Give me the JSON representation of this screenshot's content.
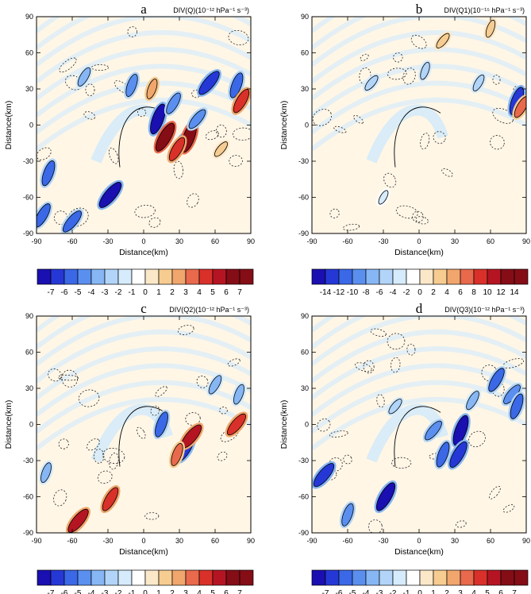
{
  "figure": {
    "axis_xlabel": "Distance(km)",
    "axis_ylabel": "Distance(km)"
  },
  "chart_data": [
    {
      "type": "heatmap",
      "panel_label": "a",
      "title": "DIV(Q)(10⁻¹² hPa⁻¹ s⁻³)",
      "xlabel": "Distance(km)",
      "ylabel": "Distance(km)",
      "xlim": [
        -90,
        90
      ],
      "ylim": [
        -90,
        90
      ],
      "xticks": [
        -90,
        -60,
        -30,
        0,
        30,
        60,
        90
      ],
      "yticks": [
        90,
        60,
        30,
        0,
        -30,
        -60,
        -90
      ],
      "colorbar_levels": [
        "-7",
        "-6",
        "-5",
        "-4",
        "-3",
        "-2",
        "-1",
        "0",
        "1",
        "2",
        "3",
        "4",
        "5",
        "6",
        "7"
      ],
      "features": [
        {
          "x": 12,
          "y": 5,
          "value": -7
        },
        {
          "x": 18,
          "y": -10,
          "value": 7
        },
        {
          "x": 33,
          "y": -15,
          "value": -7
        },
        {
          "x": 38,
          "y": -10,
          "value": 7
        },
        {
          "x": 28,
          "y": -20,
          "value": 5
        },
        {
          "x": 55,
          "y": 35,
          "value": -6
        },
        {
          "x": 78,
          "y": 33,
          "value": -5
        },
        {
          "x": 82,
          "y": 20,
          "value": 5
        },
        {
          "x": -28,
          "y": -58,
          "value": -7
        },
        {
          "x": -80,
          "y": -40,
          "value": -5
        },
        {
          "x": -85,
          "y": -75,
          "value": -5
        },
        {
          "x": -60,
          "y": -80,
          "value": -5
        },
        {
          "x": -10,
          "y": 33,
          "value": -4
        },
        {
          "x": 25,
          "y": 18,
          "value": -4
        },
        {
          "x": 45,
          "y": 5,
          "value": -4
        },
        {
          "x": 7,
          "y": 30,
          "value": 3
        },
        {
          "x": -50,
          "y": 40,
          "value": -3
        },
        {
          "x": 65,
          "y": -20,
          "value": 2
        }
      ]
    },
    {
      "type": "heatmap",
      "panel_label": "b",
      "title": "DIV(Q1)(10⁻¹⁵ hPa⁻¹ s⁻³)",
      "xlabel": "Distance(km)",
      "ylabel": "Distance(km)",
      "xlim": [
        -90,
        90
      ],
      "ylim": [
        -90,
        90
      ],
      "xticks": [
        -90,
        -60,
        -30,
        0,
        30,
        60,
        90
      ],
      "yticks": [
        90,
        60,
        30,
        0,
        -30,
        -60,
        -90
      ],
      "colorbar_levels": [
        "-14",
        "-12",
        "-10",
        "-8",
        "-6",
        "-4",
        "-2",
        "0",
        "2",
        "4",
        "6",
        "8",
        "10",
        "12",
        "14"
      ],
      "features": [
        {
          "x": 82,
          "y": 20,
          "value": -12
        },
        {
          "x": 86,
          "y": 15,
          "value": 8
        },
        {
          "x": -40,
          "y": 35,
          "value": -4
        },
        {
          "x": 5,
          "y": 45,
          "value": -4
        },
        {
          "x": 50,
          "y": 35,
          "value": -4
        },
        {
          "x": 20,
          "y": 70,
          "value": 4
        },
        {
          "x": 60,
          "y": 80,
          "value": 4
        },
        {
          "x": -30,
          "y": -60,
          "value": -2
        }
      ]
    },
    {
      "type": "heatmap",
      "panel_label": "c",
      "title": "DIV(Q2)(10⁻¹² hPa⁻¹ s⁻³)",
      "xlabel": "Distance(km)",
      "ylabel": "Distance(km)",
      "xlim": [
        -90,
        90
      ],
      "ylim": [
        -90,
        90
      ],
      "xticks": [
        -90,
        -60,
        -30,
        0,
        30,
        60,
        90
      ],
      "yticks": [
        90,
        60,
        30,
        0,
        -30,
        -60,
        -90
      ],
      "colorbar_levels": [
        "-7",
        "-6",
        "-5",
        "-4",
        "-3",
        "-2",
        "-1",
        "0",
        "1",
        "2",
        "3",
        "4",
        "5",
        "6",
        "7"
      ],
      "features": [
        {
          "x": 15,
          "y": 0,
          "value": -5
        },
        {
          "x": 35,
          "y": -20,
          "value": -6
        },
        {
          "x": 40,
          "y": -10,
          "value": 6
        },
        {
          "x": 28,
          "y": -25,
          "value": 4
        },
        {
          "x": -28,
          "y": -62,
          "value": 5
        },
        {
          "x": -55,
          "y": -80,
          "value": 6
        },
        {
          "x": -82,
          "y": -40,
          "value": -3
        },
        {
          "x": 60,
          "y": 33,
          "value": -3
        },
        {
          "x": 78,
          "y": 0,
          "value": 5
        },
        {
          "x": 80,
          "y": 25,
          "value": -3
        }
      ]
    },
    {
      "type": "heatmap",
      "panel_label": "d",
      "title": "DIV(Q3)(10⁻¹² hPa⁻¹ s⁻³)",
      "xlabel": "Distance(km)",
      "ylabel": "Distance(km)",
      "xlim": [
        -90,
        90
      ],
      "ylim": [
        -90,
        90
      ],
      "xticks": [
        -90,
        -60,
        -30,
        0,
        30,
        60,
        90
      ],
      "yticks": [
        90,
        60,
        30,
        0,
        -30,
        -60,
        -90
      ],
      "colorbar_levels": [
        "-7",
        "-6",
        "-5",
        "-4",
        "-3",
        "-2",
        "-1",
        "0",
        "1",
        "2",
        "3",
        "4",
        "5",
        "6",
        "7"
      ],
      "features": [
        {
          "x": 35,
          "y": -5,
          "value": -7
        },
        {
          "x": 33,
          "y": -25,
          "value": -6
        },
        {
          "x": 12,
          "y": -5,
          "value": -4
        },
        {
          "x": 20,
          "y": -25,
          "value": -5
        },
        {
          "x": -28,
          "y": -60,
          "value": -7
        },
        {
          "x": -80,
          "y": -42,
          "value": -6
        },
        {
          "x": -60,
          "y": -75,
          "value": -4
        },
        {
          "x": 65,
          "y": 37,
          "value": -5
        },
        {
          "x": 78,
          "y": 25,
          "value": -4
        },
        {
          "x": 82,
          "y": 15,
          "value": -5
        },
        {
          "x": 45,
          "y": 20,
          "value": -3
        },
        {
          "x": -20,
          "y": 15,
          "value": -2
        }
      ]
    }
  ]
}
